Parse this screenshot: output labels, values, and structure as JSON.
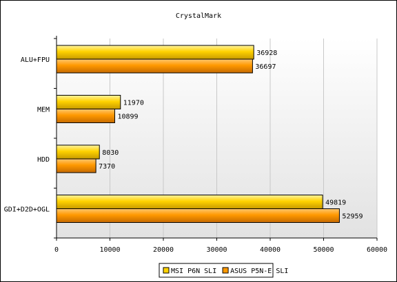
{
  "chart_data": {
    "type": "bar",
    "orientation": "horizontal",
    "title": "CrystalMark",
    "categories": [
      "ALU+FPU",
      "MEM",
      "HDD",
      "GDI+D2D+OGL"
    ],
    "series": [
      {
        "name": "MSI P6N SLI",
        "values": [
          36928,
          11970,
          8030,
          49819
        ],
        "color": "#FFD200"
      },
      {
        "name": "ASUS P5N-E SLI",
        "values": [
          36697,
          10899,
          7370,
          52959
        ],
        "color": "#FF9900"
      }
    ],
    "xlim": [
      0,
      60000
    ],
    "xticks": [
      0,
      10000,
      20000,
      30000,
      40000,
      50000,
      60000
    ],
    "xtick_labels": [
      "0",
      "10000",
      "20000",
      "30000",
      "40000",
      "50000",
      "60000"
    ],
    "grid": "vertical",
    "legend_position": "bottom",
    "data_labels": true
  }
}
